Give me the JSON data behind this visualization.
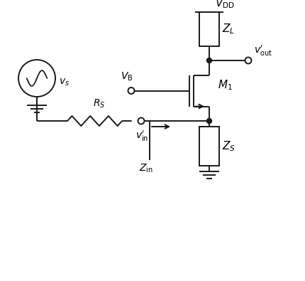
{
  "bg_color": "#ffffff",
  "line_color": "#1a1a1a",
  "lw": 1.4,
  "fig_w": 4.3,
  "fig_h": 3.95,
  "dpi": 100,
  "labels": {
    "VDD": "$V_{\\mathrm{DD}}$",
    "ZL": "$Z_L$",
    "vout": "$v^{\\prime}_{\\mathrm{out}}$",
    "VB": "$V_{\\mathrm{B}}$",
    "M1": "$M_1$",
    "RS": "$R_S$",
    "vin": "$v^{\\prime}_{\\mathrm{in}}$",
    "Zin": "$Z_{\\mathrm{in}}$",
    "ZS": "$Z_S$",
    "vs": "$v_s$"
  }
}
